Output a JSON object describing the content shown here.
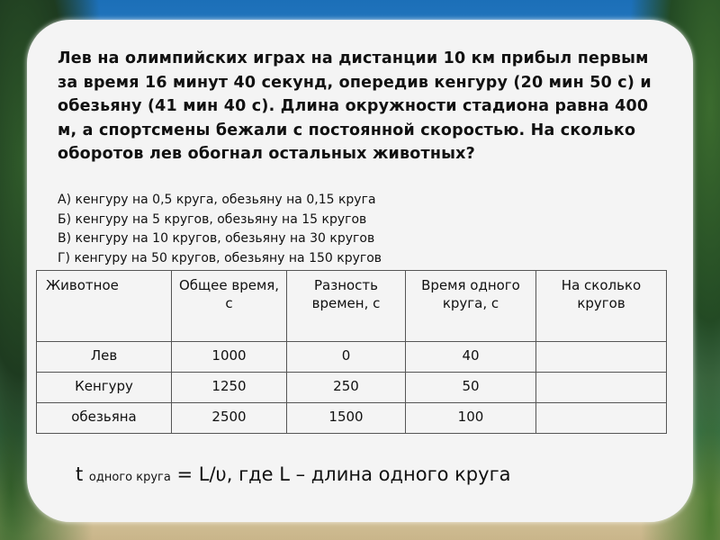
{
  "problem": "Лев на олимпийских играх на дистанции 10 км прибыл первым за время 16 минут 40 секунд, опередив кенгуру (20 мин 50 с) и обезьяну (41 мин 40 с). Длина окружности стадиона равна 400 м, а спортсмены бежали с постоянной скоростью. На сколько оборотов лев обогнал остальных животных?",
  "options": [
    "А) кенгуру на 0,5 круга, обезьяну на 0,15 круга",
    "Б) кенгуру на 5 кругов, обезьяну на 15 кругов",
    "В) кенгуру на 10 кругов, обезьяну на 30 кругов",
    "Г) кенгуру на 50 кругов, обезьяну на 150 кругов"
  ],
  "table": {
    "headers": [
      "Животное",
      "Общее время, с",
      "Разность времен, с",
      "Время одного круга, с",
      "На сколько кругов"
    ],
    "rows": [
      [
        "Лев",
        "1000",
        "0",
        "40",
        ""
      ],
      [
        "Кенгуру",
        "1250",
        "250",
        "50",
        ""
      ],
      [
        "обезьяна",
        "2500",
        "1500",
        "100",
        ""
      ]
    ]
  },
  "formula": {
    "main": "t",
    "subscript": "одного круга",
    "rest": "= L/υ, где L – длина одного круга"
  }
}
